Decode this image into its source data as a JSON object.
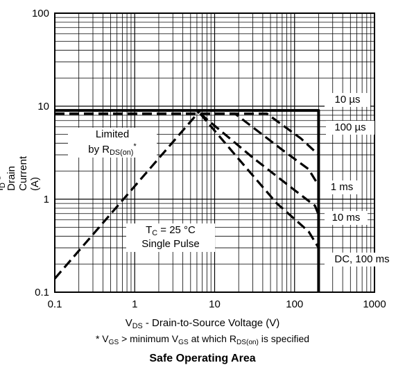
{
  "chart_data": {
    "type": "line",
    "title": "Safe Operating Area",
    "xscale": "log",
    "yscale": "log",
    "xlim": [
      0.1,
      1000
    ],
    "ylim": [
      0.1,
      100
    ],
    "x_ticks": [
      "0.1",
      "1",
      "10",
      "100",
      "1000"
    ],
    "y_ticks": [
      "0.1",
      "1",
      "10",
      "100"
    ],
    "xlabel": {
      "main": "V",
      "sub": "DS",
      "rest": " - Drain-to-Source Voltage (V)"
    },
    "ylabel": {
      "main": "I",
      "sub": "D",
      "rest": " - Drain Current (A)"
    },
    "footnote": {
      "p1": "* V",
      "s1": "GS",
      "p2": " > minimum V",
      "s2": "GS",
      "p3": " at which R",
      "s3": "DS(on)",
      "p4": " is specified"
    },
    "grid": true,
    "annotations": {
      "limited_line1": "Limited",
      "limited_line2_main": "by R",
      "limited_line2_sub": "DS(on)",
      "limited_line2_rest": "*",
      "tc_main": "T",
      "tc_sub": "C",
      "tc_rest": " = 25 °C",
      "single_pulse": "Single Pulse"
    },
    "curve_labels": [
      "10 µs",
      "100 µs",
      "1 ms",
      "10 ms",
      "DC, 100 ms"
    ],
    "series": [
      {
        "name": "10 µs",
        "style": "solid",
        "x": [
          0.1,
          200,
          200
        ],
        "y": [
          9.0,
          9.0,
          0.1
        ]
      },
      {
        "name": "Limited by RDS(on)*",
        "style": "dashed",
        "x": [
          0.1,
          6.6
        ],
        "y": [
          0.14,
          9.0
        ]
      },
      {
        "name": "100 µs",
        "style": "dashed",
        "x": [
          0.1,
          45,
          120,
          200,
          200
        ],
        "y": [
          8.3,
          8.3,
          4.5,
          3.0,
          3.0
        ]
      },
      {
        "name": "1 ms",
        "style": "dashed",
        "x": [
          0.1,
          18,
          70,
          150,
          200,
          200
        ],
        "y": [
          8.3,
          8.3,
          3.4,
          2.1,
          1.4,
          1.4
        ]
      },
      {
        "name": "10 ms",
        "style": "dashed",
        "x": [
          6.6,
          30,
          100,
          180,
          200,
          200
        ],
        "y": [
          8.3,
          2.8,
          1.25,
          0.85,
          0.68,
          0.68
        ]
      },
      {
        "name": "DC, 100 ms",
        "style": "dashed",
        "x": [
          6.6,
          20,
          60,
          150,
          200,
          200
        ],
        "y": [
          8.3,
          2.7,
          0.9,
          0.45,
          0.3,
          0.22
        ]
      }
    ]
  }
}
